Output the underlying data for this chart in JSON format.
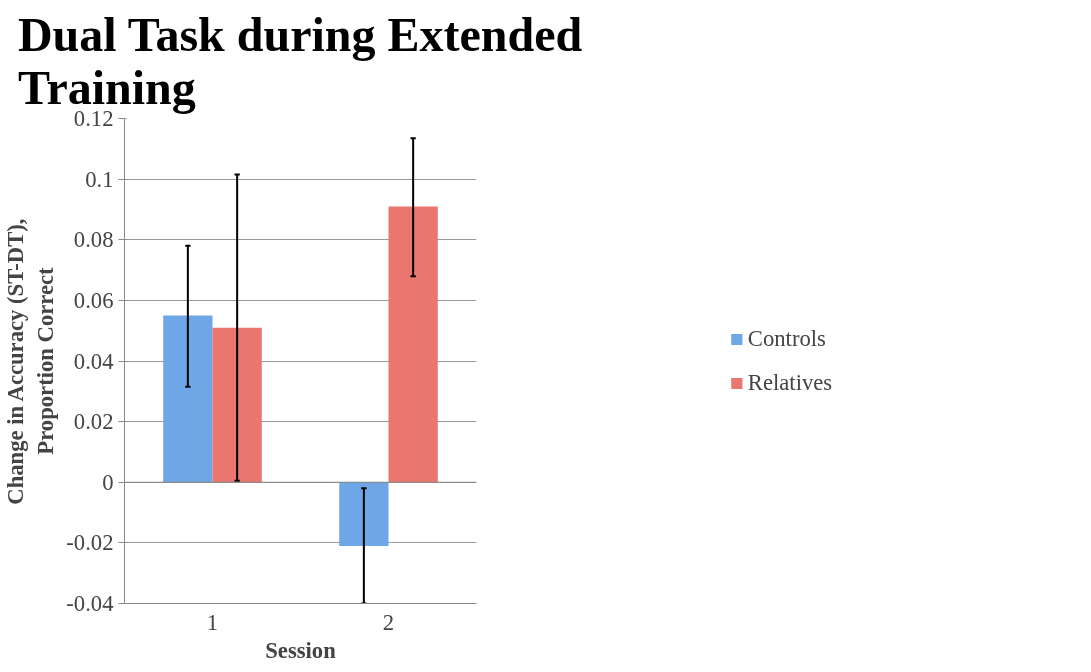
{
  "chart_data": {
    "type": "bar",
    "title": "Dual Task during Extended Training",
    "xlabel": "Session",
    "ylabel": "Change in Accuracy (ST-DT), Proportion Correct",
    "categories": [
      "1",
      "2"
    ],
    "series": [
      {
        "name": "Controls",
        "color": "#6fa6e6",
        "values": [
          0.055,
          -0.021
        ],
        "errors": [
          [
            0.0315,
            0.078
          ],
          [
            -0.04,
            -0.002
          ]
        ]
      },
      {
        "name": "Relatives",
        "color": "#e9766f",
        "values": [
          0.051,
          0.091
        ],
        "errors": [
          [
            0.0005,
            0.1015
          ],
          [
            0.068,
            0.1135
          ]
        ]
      }
    ],
    "ylim": [
      -0.04,
      0.12
    ],
    "yticks": [
      -0.04,
      -0.02,
      0,
      0.02,
      0.04,
      0.06,
      0.08,
      0.1,
      0.12
    ],
    "grid": "y",
    "legend": "right"
  }
}
